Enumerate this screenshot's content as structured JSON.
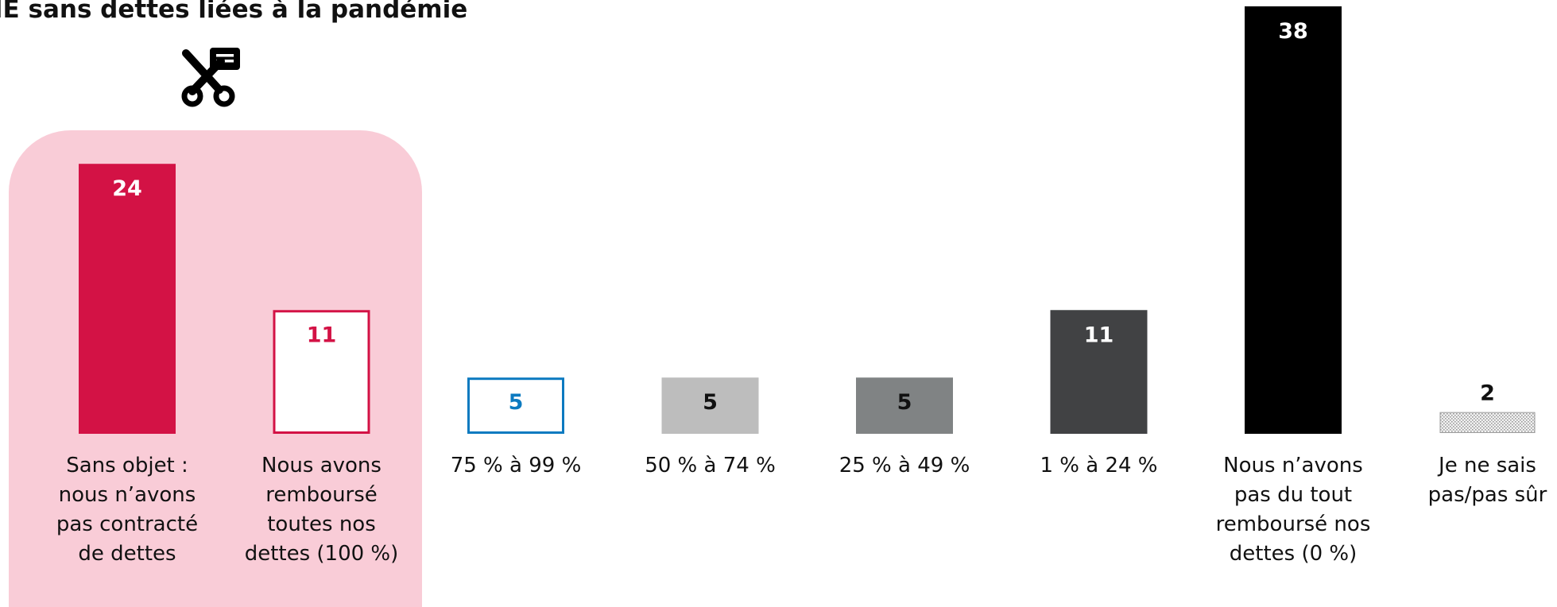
{
  "title": "IE sans dettes liées à la pandémie",
  "icon": "scissors-cut-debt-icon",
  "colors": {
    "highlight_bg": "#f9ccd7",
    "crimson": "#d31245",
    "blue": "#0c7ac0",
    "light_gray": "#bdbdbd",
    "mid_gray": "#808384",
    "dark_gray": "#414244",
    "black": "#000000"
  },
  "chart_data": {
    "type": "bar",
    "categories": [
      "Sans objet : nous n’avons pas contracté de dettes",
      "Nous avons remboursé toutes nos dettes (100 %)",
      "75 % à 99 %",
      "50 % à 74 %",
      "25 % à 49 %",
      "1 % à 24 %",
      "Nous n’avons pas du tout remboursé nos dettes (0 %)",
      "Je ne sais pas/pas sûr"
    ],
    "values": [
      24,
      11,
      5,
      5,
      5,
      11,
      38,
      2
    ],
    "data_labels": [
      "24",
      "11",
      "5",
      "5",
      "5",
      "11",
      "38",
      "2"
    ],
    "bar_styles": [
      {
        "fill": "#d31245",
        "stroke": "none",
        "label_color": "#ffffff",
        "label_pos": "inside"
      },
      {
        "fill": "#ffffff",
        "stroke": "#d31245",
        "label_color": "#d31245",
        "label_pos": "inside"
      },
      {
        "fill": "#ffffff",
        "stroke": "#0c7ac0",
        "label_color": "#0c7ac0",
        "label_pos": "inside"
      },
      {
        "fill": "#bdbdbd",
        "stroke": "none",
        "label_color": "#111111",
        "label_pos": "inside"
      },
      {
        "fill": "#808384",
        "stroke": "none",
        "label_color": "#111111",
        "label_pos": "inside"
      },
      {
        "fill": "#414244",
        "stroke": "none",
        "label_color": "#ffffff",
        "label_pos": "inside"
      },
      {
        "fill": "#000000",
        "stroke": "none",
        "label_color": "#ffffff",
        "label_pos": "inside"
      },
      {
        "fill": "pattern",
        "stroke": "#9a9a9a",
        "label_color": "#111111",
        "label_pos": "above"
      }
    ],
    "highlighted_categories": [
      0,
      1
    ],
    "ylim": [
      0,
      38
    ],
    "grid": false,
    "legend": "none",
    "xlabel": "",
    "ylabel": ""
  }
}
